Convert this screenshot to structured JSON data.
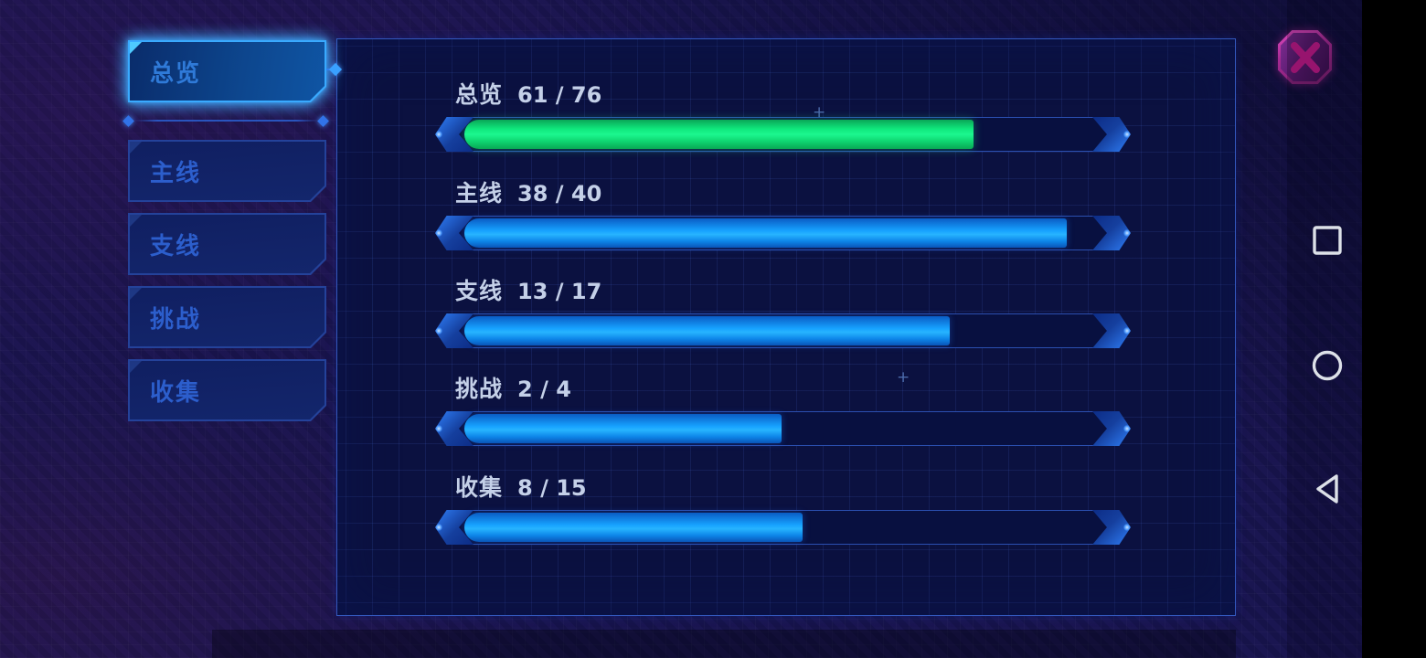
{
  "sidebar": {
    "tabs": [
      {
        "label": "总览",
        "selected": true
      },
      {
        "label": "主线",
        "selected": false
      },
      {
        "label": "支线",
        "selected": false
      },
      {
        "label": "挑战",
        "selected": false
      },
      {
        "label": "收集",
        "selected": false
      }
    ]
  },
  "panel": {
    "rows": [
      {
        "label": "总览",
        "current": 61,
        "total": 76,
        "progress_text": "61 / 76",
        "percent": 80.26,
        "fill": "green"
      },
      {
        "label": "主线",
        "current": 38,
        "total": 40,
        "progress_text": "38 / 40",
        "percent": 95.0,
        "fill": "blue"
      },
      {
        "label": "支线",
        "current": 13,
        "total": 17,
        "progress_text": "13 / 17",
        "percent": 76.47,
        "fill": "blue"
      },
      {
        "label": "挑战",
        "current": 2,
        "total": 4,
        "progress_text": "2 / 4",
        "percent": 50.0,
        "fill": "blue"
      },
      {
        "label": "收集",
        "current": 8,
        "total": 15,
        "progress_text": "8 / 15",
        "percent": 53.33,
        "fill": "blue"
      }
    ]
  },
  "close_button": {
    "icon": "close-x"
  },
  "android_nav": {
    "icons": [
      "recents-square",
      "home-circle",
      "back-triangle"
    ]
  },
  "colors": {
    "green_fill": "#12e87f",
    "blue_fill": "#18a4ff",
    "selected_tab_border": "#39aaff",
    "magenta_accent": "#c21a8a",
    "panel_border": "#3358bd",
    "label_text": "#c4d0e8"
  }
}
